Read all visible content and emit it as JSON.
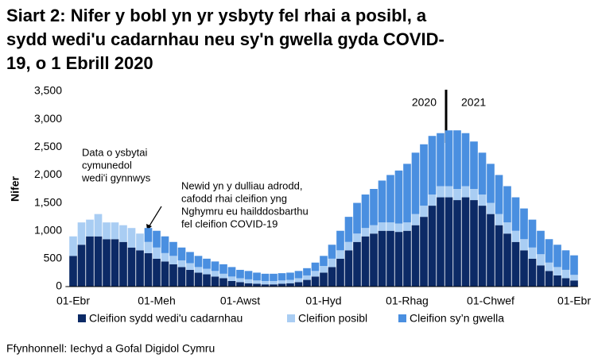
{
  "chart_data": {
    "type": "stacked_bar",
    "title": [
      "Siart 2: Nifer y bobl yn yr ysbyty fel rhai a posibl, a",
      "sydd wedi'u cadarnhau neu sy'n gwella gyda COVID-",
      "19, o 1 Ebrill 2020"
    ],
    "ylabel": "Nifer",
    "source": "Ffynhonnell: Iechyd a Gofal Digidol Cymru",
    "annotations": [
      [
        "Data o ysbytai",
        "cymunedol",
        "wedi'i gynnwys"
      ],
      [
        "Newid yn y dulliau adrodd,",
        "cafodd rhai cleifion yng",
        "Nghymru eu hailddosbarthu",
        "fel cleifion COVID-19"
      ],
      "2020",
      "2021"
    ],
    "categories": [
      "01-Ebr",
      null,
      null,
      null,
      null,
      null,
      null,
      null,
      null,
      null,
      "01-Meh",
      null,
      null,
      null,
      null,
      null,
      null,
      null,
      null,
      null,
      "01-Awst",
      null,
      null,
      null,
      null,
      null,
      null,
      null,
      null,
      null,
      "01-Hyd",
      null,
      null,
      null,
      null,
      null,
      null,
      null,
      null,
      null,
      "01-Rhag",
      null,
      null,
      null,
      null,
      null,
      null,
      null,
      null,
      null,
      "01-Chwef",
      null,
      null,
      null,
      null,
      null,
      null,
      null,
      null,
      null,
      "01-Ebr"
    ],
    "series": [
      {
        "name": "Cleifion sydd wedi'u cadarnhau",
        "color": "#0c2a66",
        "values": [
          550,
          750,
          900,
          900,
          850,
          850,
          800,
          700,
          650,
          600,
          500,
          450,
          400,
          350,
          300,
          250,
          220,
          180,
          150,
          100,
          80,
          60,
          50,
          40,
          40,
          50,
          60,
          80,
          120,
          180,
          250,
          350,
          500,
          650,
          800,
          900,
          950,
          1000,
          1000,
          980,
          1000,
          1100,
          1250,
          1450,
          1600,
          1600,
          1550,
          1600,
          1550,
          1450,
          1300,
          1100,
          950,
          800,
          650,
          500,
          380,
          280,
          200,
          150,
          110
        ]
      },
      {
        "name": "Cleifion posibl",
        "color": "#a9cdf3",
        "values": [
          350,
          400,
          300,
          400,
          300,
          300,
          300,
          350,
          300,
          200,
          200,
          150,
          150,
          120,
          120,
          100,
          100,
          100,
          80,
          80,
          70,
          70,
          60,
          60,
          60,
          60,
          60,
          70,
          80,
          100,
          120,
          150,
          150,
          150,
          150,
          150,
          150,
          150,
          150,
          150,
          150,
          200,
          200,
          200,
          200,
          200,
          200,
          200,
          200,
          200,
          200,
          200,
          200,
          200,
          200,
          200,
          200,
          150,
          150,
          150,
          100
        ]
      },
      {
        "name": "Cleifion sy’n gwella",
        "color": "#4a8fe0",
        "values": [
          0,
          0,
          0,
          0,
          0,
          0,
          0,
          0,
          0,
          250,
          300,
          300,
          250,
          230,
          200,
          200,
          180,
          170,
          170,
          170,
          150,
          150,
          140,
          130,
          130,
          130,
          130,
          130,
          130,
          150,
          180,
          250,
          350,
          450,
          550,
          600,
          650,
          750,
          850,
          950,
          1050,
          1100,
          1100,
          1050,
          950,
          1000,
          1050,
          950,
          850,
          750,
          700,
          700,
          650,
          600,
          550,
          500,
          420,
          420,
          400,
          350,
          350
        ]
      }
    ],
    "ylim": [
      0,
      3500
    ],
    "yticks": [
      0,
      500,
      {
        "value": 1000,
        "label": "1,000"
      },
      {
        "value": 1500,
        "label": "1,500"
      },
      {
        "value": 2000,
        "label": "2,000"
      },
      {
        "value": 2500,
        "label": "2,500"
      },
      {
        "value": 3000,
        "label": "3,000"
      },
      {
        "value": 3500,
        "label": "3,500"
      }
    ],
    "grid": false,
    "legend": "bottom"
  }
}
